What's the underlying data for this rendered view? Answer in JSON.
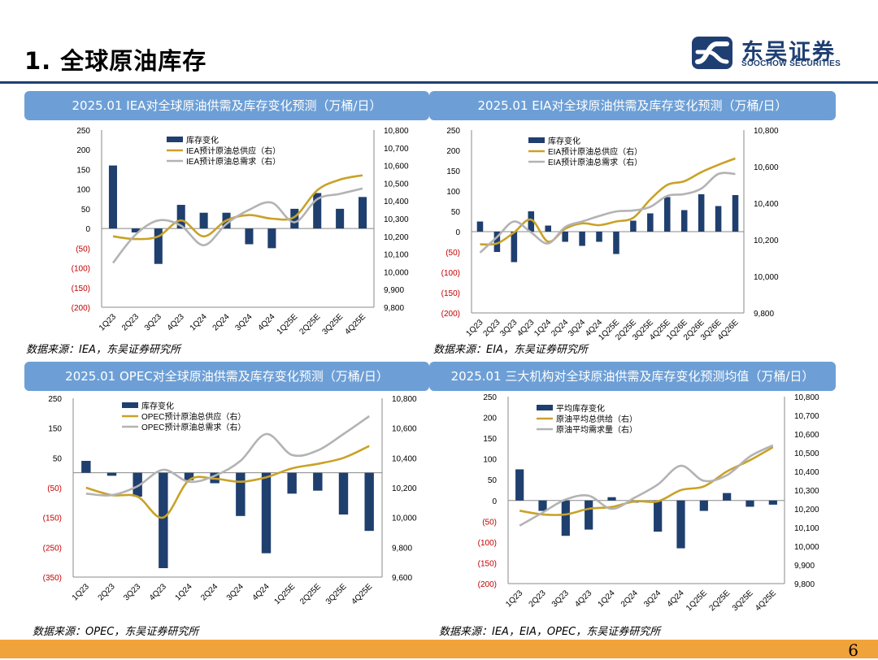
{
  "header": {
    "title": "1. 全球原油库存",
    "logo_cn": "东吴证券",
    "logo_en": "SOOCHOW SECURITIES"
  },
  "colors": {
    "bar": "#1f3f6e",
    "supply": "#c9a227",
    "demand": "#b3b3b3",
    "panel": "#6d9fd6",
    "footer": "#f0a33a",
    "negative": "#c00000"
  },
  "panels": [
    {
      "title": "2025.01 IEA对全球原油供需及库存变化预测（万桶/日）",
      "source": "数据来源：IEA，东吴证券研究所"
    },
    {
      "title": "2025.01 EIA对全球原油供需及库存变化预测（万桶/日）",
      "source": "数据来源：EIA，东吴证券研究所"
    },
    {
      "title": "2025.01 OPEC对全球原油供需及库存变化预测（万桶/日）",
      "source": "数据来源：OPEC，东吴证券研究所"
    },
    {
      "title": "2025.01 三大机构对全球原油供需及库存变化预测均值（万桶/日）",
      "source": "数据来源：IEA，EIA，OPEC，东吴证券研究所"
    }
  ],
  "chart_data": [
    {
      "type": "bar+line",
      "title": "2025.01 IEA对全球原油供需及库存变化预测（万桶/日）",
      "categories": [
        "1Q23",
        "2Q23",
        "3Q23",
        "4Q23",
        "1Q24",
        "2Q24",
        "3Q24",
        "4Q24",
        "1Q25E",
        "2Q25E",
        "3Q25E",
        "4Q25E"
      ],
      "series": [
        {
          "name": "库存变化",
          "kind": "bar",
          "axis": "left",
          "values": [
            160,
            -10,
            -90,
            60,
            40,
            40,
            -40,
            -50,
            50,
            90,
            50,
            80
          ]
        },
        {
          "name": "IEA预计原油总供应（右）",
          "kind": "line",
          "axis": "right",
          "values": [
            10200,
            10185,
            10200,
            10290,
            10200,
            10290,
            10320,
            10300,
            10310,
            10460,
            10520,
            10545
          ]
        },
        {
          "name": "IEA预计原油总需求（右）",
          "kind": "line",
          "axis": "right",
          "values": [
            10050,
            10210,
            10290,
            10260,
            10150,
            10270,
            10350,
            10390,
            10280,
            10410,
            10440,
            10470
          ]
        }
      ],
      "ylim_left": [
        -200,
        250
      ],
      "yticks_left": [
        250,
        200,
        150,
        100,
        50,
        0,
        -50,
        -100,
        -150,
        -200
      ],
      "ytick_labels_left": [
        "250",
        "200",
        "150",
        "100",
        "50",
        "0",
        "(50)",
        "(100)",
        "(150)",
        "(200)"
      ],
      "ylim_right": [
        9800,
        10800
      ],
      "yticks_right": [
        10800,
        10700,
        10600,
        10500,
        10400,
        10300,
        10200,
        10100,
        10000,
        9900,
        9800
      ],
      "ytick_labels_right": [
        "10,800",
        "10,700",
        "10,600",
        "10,500",
        "10,400",
        "10,300",
        "10,200",
        "10,100",
        "10,000",
        "9,900",
        "9,800"
      ]
    },
    {
      "type": "bar+line",
      "title": "2025.01 EIA对全球原油供需及库存变化预测（万桶/日）",
      "categories": [
        "1Q23",
        "2Q23",
        "3Q23",
        "4Q23",
        "1Q24",
        "2Q24",
        "3Q24",
        "4Q24",
        "1Q25E",
        "2Q25E",
        "3Q25E",
        "4Q25E",
        "1Q26E",
        "2Q26E",
        "3Q26E",
        "4Q26E"
      ],
      "series": [
        {
          "name": "库存变化",
          "kind": "bar",
          "axis": "left",
          "values": [
            25,
            -50,
            -75,
            50,
            15,
            -25,
            -35,
            -25,
            -55,
            27,
            45,
            85,
            53,
            92,
            63,
            90
          ]
        },
        {
          "name": "EIA预计原油总供应（右）",
          "kind": "line",
          "axis": "right",
          "values": [
            10175,
            10180,
            10240,
            10310,
            10190,
            10260,
            10290,
            10280,
            10300,
            10320,
            10420,
            10500,
            10520,
            10570,
            10610,
            10645
          ]
        },
        {
          "name": "EIA预计原油总需求（右）",
          "kind": "line",
          "axis": "right",
          "values": [
            10130,
            10215,
            10300,
            10240,
            10180,
            10270,
            10300,
            10330,
            10355,
            10360,
            10380,
            10440,
            10450,
            10480,
            10560,
            10560
          ]
        }
      ],
      "ylim_left": [
        -200,
        250
      ],
      "yticks_left": [
        250,
        200,
        150,
        100,
        50,
        0,
        -50,
        -100,
        -150,
        -200
      ],
      "ytick_labels_left": [
        "250",
        "200",
        "150",
        "100",
        "50",
        "0",
        "(50)",
        "(100)",
        "(150)",
        "(200)"
      ],
      "ylim_right": [
        9800,
        10800
      ],
      "yticks_right": [
        10800,
        10600,
        10400,
        10200,
        10000,
        9800
      ],
      "ytick_labels_right": [
        "10,800",
        "10,600",
        "10,400",
        "10,200",
        "10,000",
        "9,800"
      ]
    },
    {
      "type": "bar+line",
      "title": "2025.01 OPEC对全球原油供需及库存变化预测（万桶/日）",
      "categories": [
        "1Q23",
        "2Q23",
        "3Q23",
        "4Q23",
        "1Q24",
        "2Q24",
        "3Q24",
        "4Q24",
        "1Q25E",
        "2Q25E",
        "3Q25E",
        "4Q25E"
      ],
      "series": [
        {
          "name": "库存变化",
          "kind": "bar",
          "axis": "left",
          "values": [
            40,
            -10,
            -80,
            -320,
            -25,
            -35,
            -145,
            -270,
            -70,
            -60,
            -140,
            -195
          ]
        },
        {
          "name": "OPEC预计原油总供应（右）",
          "kind": "line",
          "axis": "right",
          "values": [
            10200,
            10150,
            10140,
            10000,
            10250,
            10260,
            10240,
            10270,
            10330,
            10360,
            10400,
            10480
          ]
        },
        {
          "name": "OPEC预计原油总需求（右）",
          "kind": "line",
          "axis": "right",
          "values": [
            10160,
            10150,
            10210,
            10320,
            10240,
            10280,
            10380,
            10560,
            10420,
            10450,
            10560,
            10680
          ]
        }
      ],
      "ylim_left": [
        -350,
        250
      ],
      "yticks_left": [
        250,
        150,
        50,
        -50,
        -150,
        -250,
        -350
      ],
      "ytick_labels_left": [
        "250",
        "150",
        "50",
        "(50)",
        "(150)",
        "(250)",
        "(350)"
      ],
      "ylim_right": [
        9600,
        10800
      ],
      "yticks_right": [
        10800,
        10600,
        10400,
        10200,
        10000,
        9800,
        9600
      ],
      "ytick_labels_right": [
        "10,800",
        "10,600",
        "10,400",
        "10,200",
        "10,000",
        "9,800",
        "9,600"
      ]
    },
    {
      "type": "bar+line",
      "title": "2025.01 三大机构对全球原油供需及库存变化预测均值（万桶/日）",
      "categories": [
        "1Q23",
        "2Q23",
        "3Q23",
        "4Q23",
        "1Q24",
        "2Q24",
        "3Q24",
        "4Q24",
        "1Q25E",
        "2Q25E",
        "3Q25E",
        "4Q25E"
      ],
      "series": [
        {
          "name": "平均库存变化",
          "kind": "bar",
          "axis": "left",
          "values": [
            75,
            -25,
            -85,
            -70,
            8,
            -5,
            -75,
            -115,
            -25,
            18,
            -15,
            -10
          ]
        },
        {
          "name": "原油平均总供给（右）",
          "kind": "line",
          "axis": "right",
          "values": [
            10190,
            10170,
            10170,
            10200,
            10210,
            10240,
            10240,
            10300,
            10320,
            10400,
            10460,
            10530
          ]
        },
        {
          "name": "原油平均需求量（右）",
          "kind": "line",
          "axis": "right",
          "values": [
            10110,
            10180,
            10250,
            10270,
            10200,
            10260,
            10330,
            10430,
            10350,
            10380,
            10480,
            10540
          ]
        }
      ],
      "ylim_left": [
        -200,
        250
      ],
      "yticks_left": [
        250,
        200,
        150,
        100,
        50,
        0,
        -50,
        -100,
        -150,
        -200
      ],
      "ytick_labels_left": [
        "250",
        "200",
        "150",
        "100",
        "50",
        "0",
        "(50)",
        "(100)",
        "(150)",
        "(200)"
      ],
      "ylim_right": [
        9800,
        10800
      ],
      "yticks_right": [
        10800,
        10700,
        10600,
        10500,
        10400,
        10300,
        10200,
        10100,
        10000,
        9900,
        9800
      ],
      "ytick_labels_right": [
        "10,800",
        "10,700",
        "10,600",
        "10,500",
        "10,400",
        "10,300",
        "10,200",
        "10,100",
        "10,000",
        "9,900",
        "9,800"
      ]
    }
  ],
  "footer": {
    "page_number": "6"
  }
}
